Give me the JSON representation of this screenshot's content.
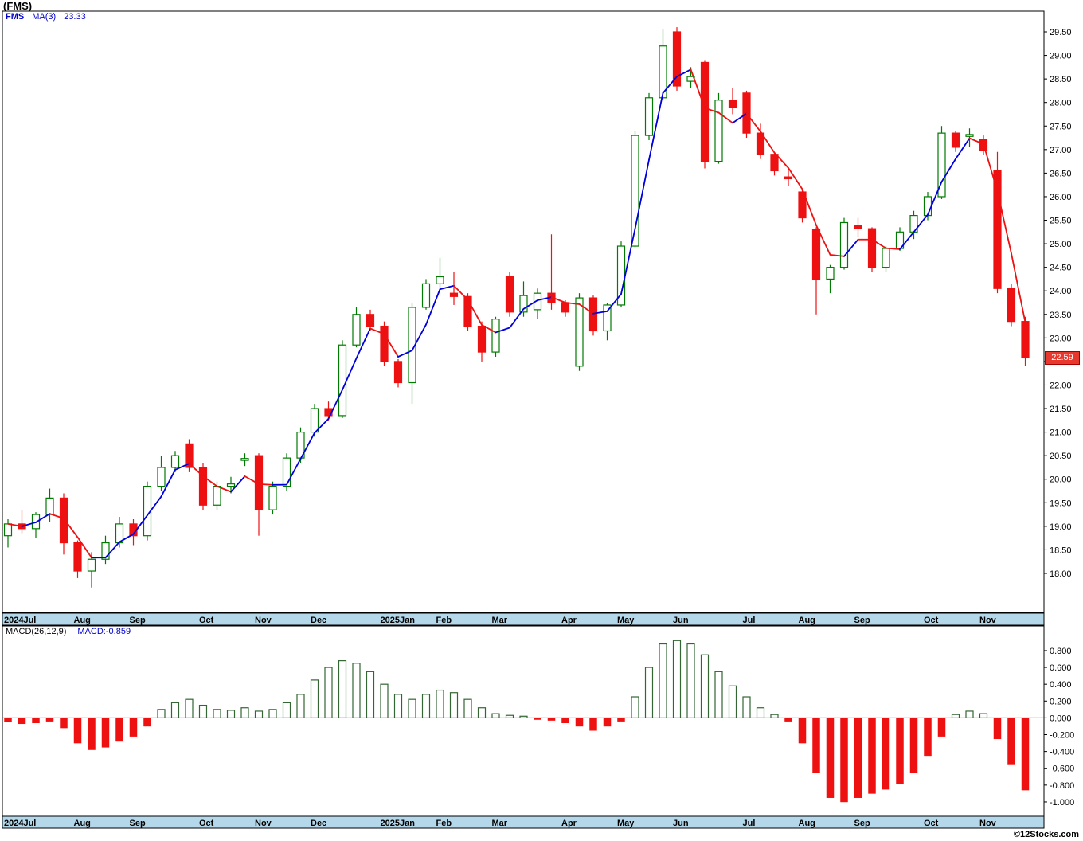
{
  "header": {
    "title": "(FMS)"
  },
  "price_legend": {
    "symbol": "FMS",
    "ma_label": "MA(3)",
    "ma_value": "23.33"
  },
  "price_tag": {
    "value": "22.59"
  },
  "macd_legend": {
    "label": "MACD(26,12,9)",
    "value": "MACD:-0.859"
  },
  "copyright": "©12Stocks.com",
  "colors": {
    "up": "#007a00",
    "down": "#ee1111",
    "ma_up": "#0000dd",
    "ma_down": "#ee1111",
    "band": "#b4d8ea",
    "macd_pos": "#336633",
    "legend_blue": "#0000cc",
    "tag_bg": "#e8382e"
  },
  "chart_data": [
    {
      "type": "candlestick",
      "title": "FMS weekly price with MA(3) overlay",
      "ma_period": 3,
      "ma_last": 23.33,
      "last_close": 22.59,
      "ylim": [
        17.2,
        29.95
      ],
      "y_axis_ticks": [
        "29.50",
        "29.00",
        "28.50",
        "28.00",
        "27.50",
        "27.00",
        "26.50",
        "26.00",
        "25.50",
        "25.00",
        "24.50",
        "24.00",
        "23.50",
        "23.00",
        "22.50",
        "22.00",
        "21.50",
        "21.00",
        "20.50",
        "20.00",
        "19.50",
        "19.00",
        "18.50",
        "18.00"
      ],
      "months": [
        {
          "label": "2024Jul",
          "week": 0
        },
        {
          "label": "Aug",
          "week": 5
        },
        {
          "label": "Sep",
          "week": 9
        },
        {
          "label": "Oct",
          "week": 14
        },
        {
          "label": "Nov",
          "week": 18
        },
        {
          "label": "Dec",
          "week": 22
        },
        {
          "label": "2025Jan",
          "week": 27
        },
        {
          "label": "Feb",
          "week": 31
        },
        {
          "label": "Mar",
          "week": 35
        },
        {
          "label": "Apr",
          "week": 40
        },
        {
          "label": "May",
          "week": 44
        },
        {
          "label": "Jun",
          "week": 48
        },
        {
          "label": "Jul",
          "week": 53
        },
        {
          "label": "Aug",
          "week": 57
        },
        {
          "label": "Sep",
          "week": 61
        },
        {
          "label": "Oct",
          "week": 66
        },
        {
          "label": "Nov",
          "week": 70
        }
      ],
      "ohlc": [
        [
          18.8,
          19.15,
          18.55,
          19.05
        ],
        [
          19.05,
          19.35,
          18.85,
          18.95
        ],
        [
          18.95,
          19.3,
          18.75,
          19.25
        ],
        [
          19.25,
          19.8,
          19.1,
          19.6
        ],
        [
          19.6,
          19.7,
          18.4,
          18.65
        ],
        [
          18.65,
          18.7,
          17.9,
          18.05
        ],
        [
          18.05,
          18.45,
          17.7,
          18.3
        ],
        [
          18.3,
          18.8,
          18.2,
          18.65
        ],
        [
          18.65,
          19.2,
          18.55,
          19.05
        ],
        [
          19.05,
          19.15,
          18.6,
          18.8
        ],
        [
          18.8,
          19.95,
          18.7,
          19.85
        ],
        [
          19.85,
          20.5,
          19.75,
          20.25
        ],
        [
          20.25,
          20.6,
          20.15,
          20.5
        ],
        [
          20.75,
          20.85,
          20.15,
          20.25
        ],
        [
          20.25,
          20.35,
          19.35,
          19.45
        ],
        [
          19.45,
          19.95,
          19.35,
          19.85
        ],
        [
          19.85,
          20.05,
          19.7,
          19.9
        ],
        [
          20.4,
          20.55,
          20.28,
          20.44
        ],
        [
          20.5,
          20.55,
          18.8,
          19.35
        ],
        [
          19.35,
          19.95,
          19.25,
          19.85
        ],
        [
          19.85,
          20.55,
          19.75,
          20.45
        ],
        [
          20.45,
          21.1,
          20.35,
          21.0
        ],
        [
          21.0,
          21.6,
          20.9,
          21.5
        ],
        [
          21.5,
          21.65,
          21.25,
          21.35
        ],
        [
          21.35,
          22.95,
          21.3,
          22.85
        ],
        [
          22.85,
          23.65,
          22.8,
          23.5
        ],
        [
          23.5,
          23.6,
          23.15,
          23.25
        ],
        [
          23.25,
          23.35,
          22.4,
          22.5
        ],
        [
          22.5,
          22.55,
          21.95,
          22.05
        ],
        [
          22.05,
          23.75,
          21.6,
          23.65
        ],
        [
          23.65,
          24.25,
          23.6,
          24.15
        ],
        [
          24.15,
          24.7,
          24.05,
          24.3
        ],
        [
          23.95,
          24.4,
          23.7,
          23.88
        ],
        [
          23.88,
          23.95,
          23.15,
          23.25
        ],
        [
          23.25,
          23.35,
          22.5,
          22.7
        ],
        [
          22.7,
          23.45,
          22.6,
          23.4
        ],
        [
          24.3,
          24.4,
          23.45,
          23.55
        ],
        [
          23.55,
          24.2,
          23.45,
          23.9
        ],
        [
          23.6,
          24.05,
          23.4,
          23.95
        ],
        [
          23.95,
          25.2,
          23.6,
          23.75
        ],
        [
          23.75,
          23.8,
          23.45,
          23.55
        ],
        [
          22.4,
          23.95,
          22.3,
          23.85
        ],
        [
          23.85,
          23.9,
          23.05,
          23.15
        ],
        [
          23.15,
          23.75,
          22.95,
          23.7
        ],
        [
          23.7,
          25.05,
          23.65,
          24.95
        ],
        [
          24.95,
          27.4,
          24.9,
          27.3
        ],
        [
          27.3,
          28.2,
          27.2,
          28.1
        ],
        [
          28.1,
          29.55,
          28.05,
          29.2
        ],
        [
          29.5,
          29.6,
          28.25,
          28.35
        ],
        [
          28.45,
          28.75,
          28.3,
          28.55
        ],
        [
          28.85,
          28.9,
          26.6,
          26.75
        ],
        [
          26.75,
          28.2,
          26.7,
          28.05
        ],
        [
          28.05,
          28.3,
          27.75,
          27.9
        ],
        [
          28.2,
          28.25,
          27.25,
          27.35
        ],
        [
          27.35,
          27.55,
          26.8,
          26.9
        ],
        [
          26.9,
          26.95,
          26.45,
          26.55
        ],
        [
          26.42,
          26.6,
          26.22,
          26.38
        ],
        [
          26.1,
          26.15,
          25.45,
          25.55
        ],
        [
          25.3,
          25.35,
          23.5,
          24.25
        ],
        [
          24.25,
          24.55,
          23.95,
          24.5
        ],
        [
          24.5,
          25.55,
          24.45,
          25.45
        ],
        [
          25.38,
          25.55,
          25.15,
          25.32
        ],
        [
          25.32,
          25.35,
          24.4,
          24.5
        ],
        [
          24.5,
          24.95,
          24.4,
          24.9
        ],
        [
          24.9,
          25.35,
          24.85,
          25.25
        ],
        [
          25.25,
          25.7,
          25.1,
          25.6
        ],
        [
          25.6,
          26.1,
          25.5,
          26.0
        ],
        [
          26.0,
          27.5,
          25.95,
          27.35
        ],
        [
          27.35,
          27.4,
          26.95,
          27.05
        ],
        [
          27.28,
          27.45,
          27.05,
          27.32
        ],
        [
          27.22,
          27.3,
          26.88,
          26.98
        ],
        [
          26.55,
          26.95,
          23.95,
          24.05
        ],
        [
          24.05,
          24.15,
          23.25,
          23.35
        ],
        [
          23.35,
          23.45,
          22.4,
          22.59
        ]
      ]
    },
    {
      "type": "bar",
      "title": "MACD(26,12,9) histogram",
      "last_value": -0.859,
      "ylim": [
        -1.16,
        1.09
      ],
      "y_axis_ticks": [
        "0.800",
        "0.600",
        "0.400",
        "0.200",
        "0.000",
        "-0.200",
        "-0.400",
        "-0.600",
        "-0.800",
        "-1.000"
      ],
      "values": [
        -0.05,
        -0.07,
        -0.06,
        -0.04,
        -0.12,
        -0.3,
        -0.38,
        -0.35,
        -0.28,
        -0.22,
        -0.1,
        0.1,
        0.18,
        0.22,
        0.15,
        0.1,
        0.09,
        0.12,
        0.08,
        0.1,
        0.18,
        0.28,
        0.45,
        0.6,
        0.68,
        0.65,
        0.55,
        0.4,
        0.28,
        0.22,
        0.28,
        0.33,
        0.3,
        0.22,
        0.12,
        0.05,
        0.03,
        0.02,
        -0.02,
        -0.03,
        -0.06,
        -0.1,
        -0.15,
        -0.1,
        -0.04,
        0.25,
        0.6,
        0.88,
        0.92,
        0.88,
        0.75,
        0.55,
        0.38,
        0.25,
        0.12,
        0.04,
        -0.04,
        -0.3,
        -0.65,
        -0.95,
        -1.0,
        -0.95,
        -0.9,
        -0.85,
        -0.78,
        -0.65,
        -0.45,
        -0.22,
        0.04,
        0.08,
        0.05,
        -0.25,
        -0.55,
        -0.859
      ]
    }
  ]
}
